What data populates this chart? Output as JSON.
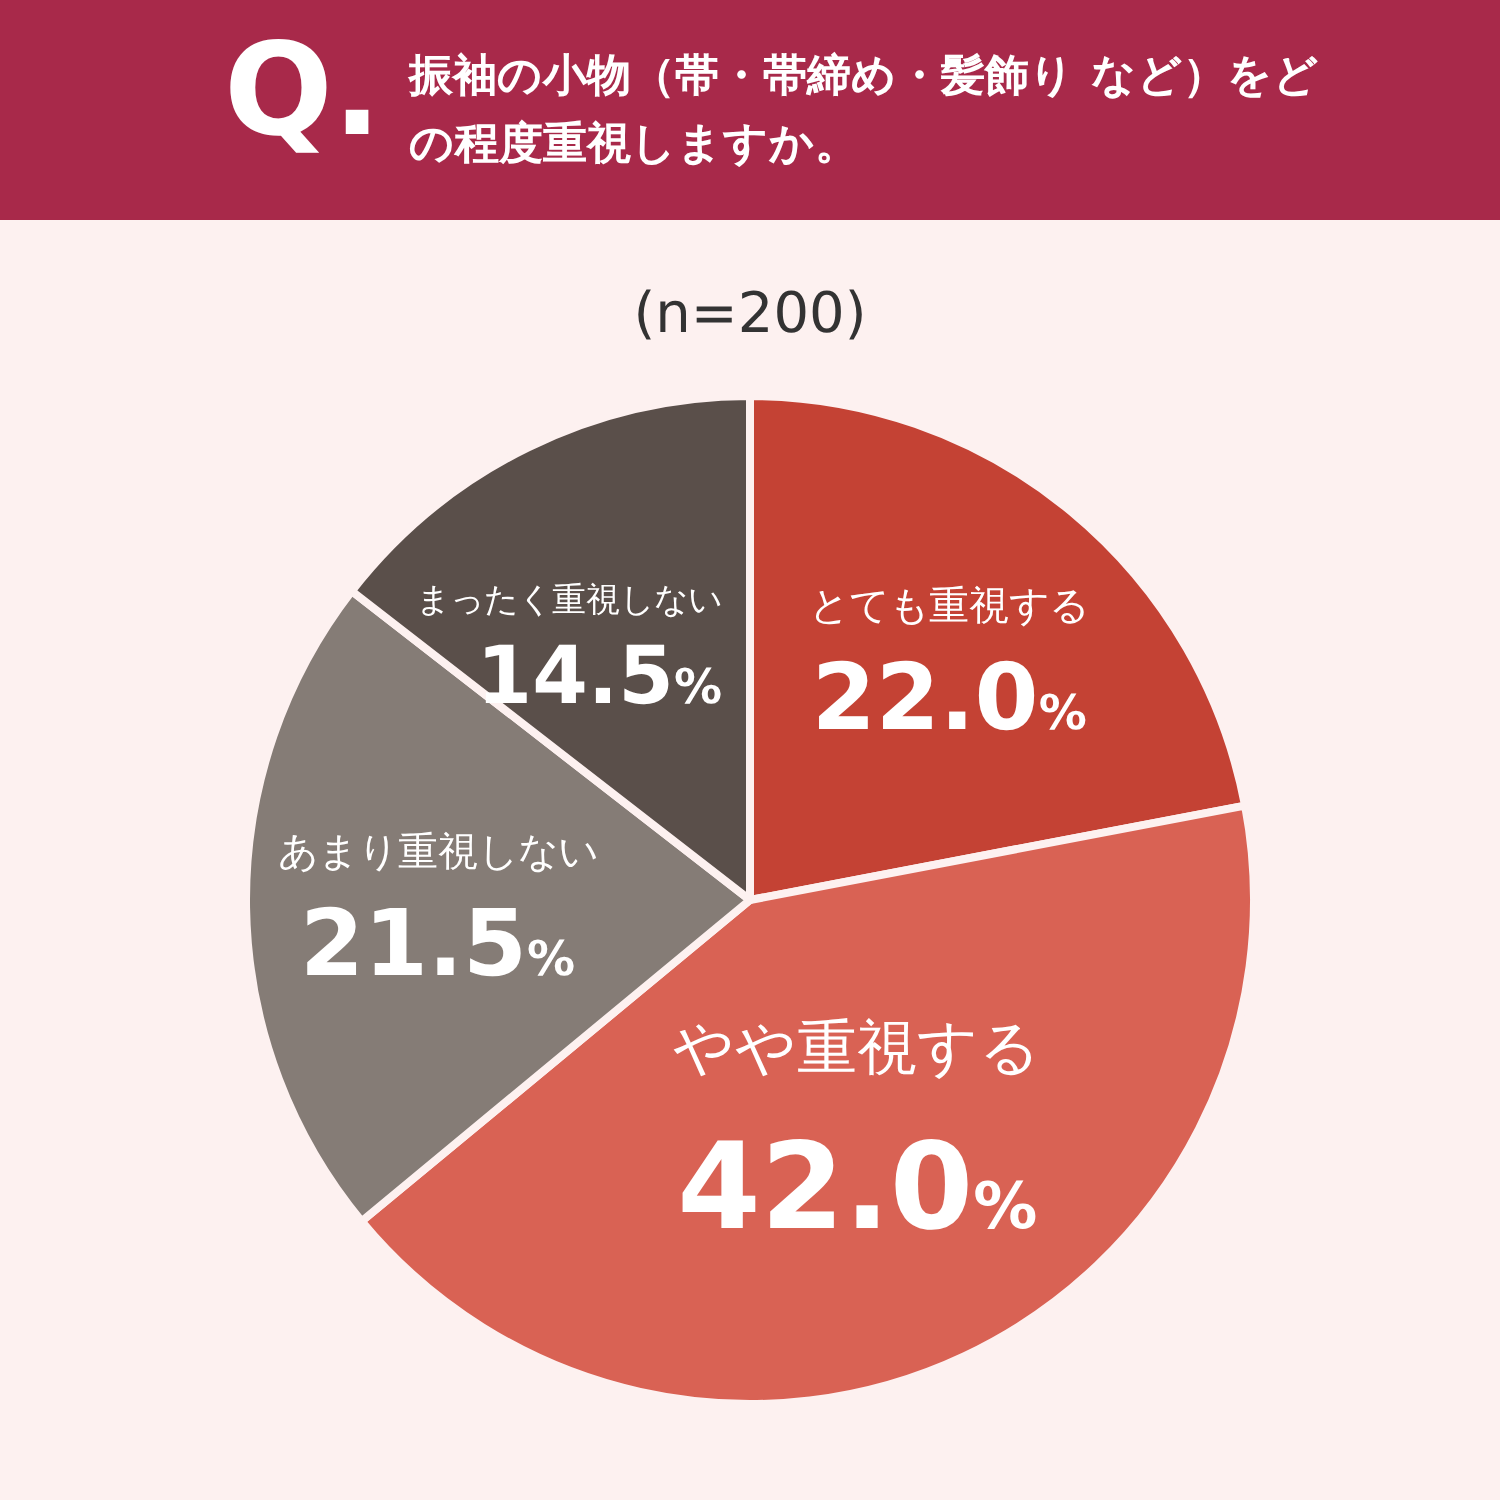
{
  "chart_data": {
    "type": "pie",
    "title": "Q. 振袖の小物（帯・帯締め・髪飾り など）をどの程度重視しますか。",
    "subtitle": "(n=200)",
    "categories": [
      "とても重視する",
      "やや重視する",
      "あまり重視しない",
      "まったく重視しない"
    ],
    "values": [
      22.0,
      42.0,
      21.5,
      14.5
    ],
    "colors": [
      "#c44234",
      "#d96254",
      "#857c76",
      "#5a4f4a"
    ],
    "value_labels": [
      "22.0%",
      "42.0%",
      "21.5%",
      "14.5%"
    ]
  }
}
